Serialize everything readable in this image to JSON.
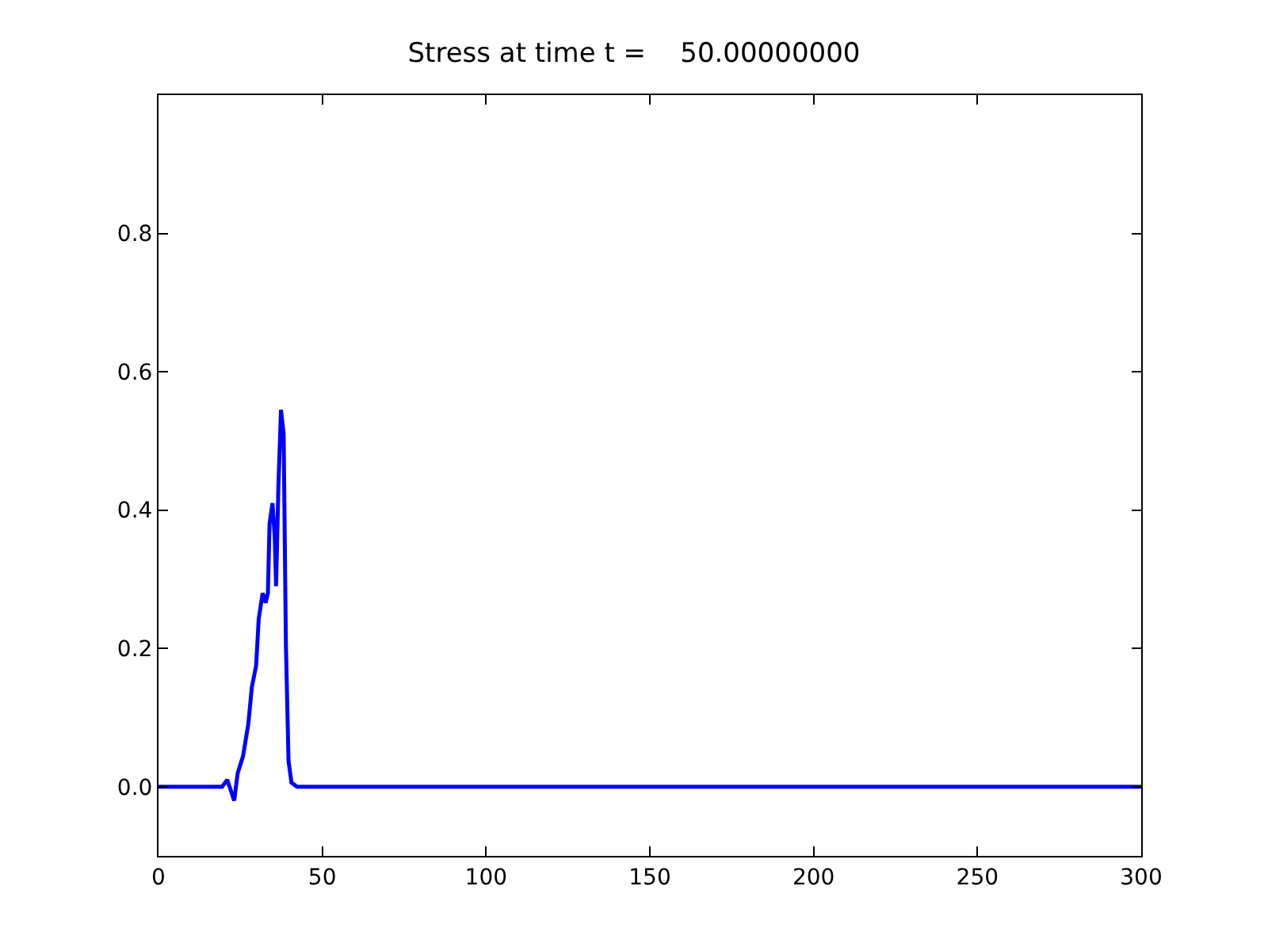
{
  "chart_data": {
    "type": "line",
    "title": "Stress at time t =    50.00000000",
    "x": [
      0,
      5,
      10,
      15,
      19.4,
      21,
      23.1,
      24.2,
      25.8,
      27.4,
      28.5,
      29.8,
      30.6,
      31.8,
      32.7,
      33.4,
      33.9,
      34.8,
      35.5,
      35.9,
      36.6,
      37.4,
      38.2,
      38.9,
      39.7,
      40.6,
      42.3,
      50,
      100,
      150,
      200,
      250,
      300
    ],
    "series": [
      {
        "color": "#0000ff",
        "values": [
          0,
          0,
          0,
          0,
          0,
          0.01,
          -0.02,
          0.02,
          0.044,
          0.09,
          0.144,
          0.175,
          0.243,
          0.28,
          0.266,
          0.28,
          0.38,
          0.41,
          0.36,
          0.29,
          0.434,
          0.545,
          0.51,
          0.205,
          0.037,
          0.006,
          0,
          0,
          0,
          0,
          0,
          0,
          0
        ]
      }
    ],
    "xlim": [
      0,
      300
    ],
    "xticks": [
      0,
      50,
      100,
      150,
      200,
      250,
      300
    ],
    "ylim": [
      -0.1,
      1.0
    ],
    "yticks": [
      {
        "value": 0,
        "label": "0.0"
      },
      {
        "value": 0.2,
        "label": "0.2"
      },
      {
        "value": 0.4,
        "label": "0.4"
      },
      {
        "value": 0.6,
        "label": "0.6"
      },
      {
        "value": 0.8,
        "label": "0.8"
      }
    ],
    "marker": "none",
    "line_style": "solid"
  }
}
